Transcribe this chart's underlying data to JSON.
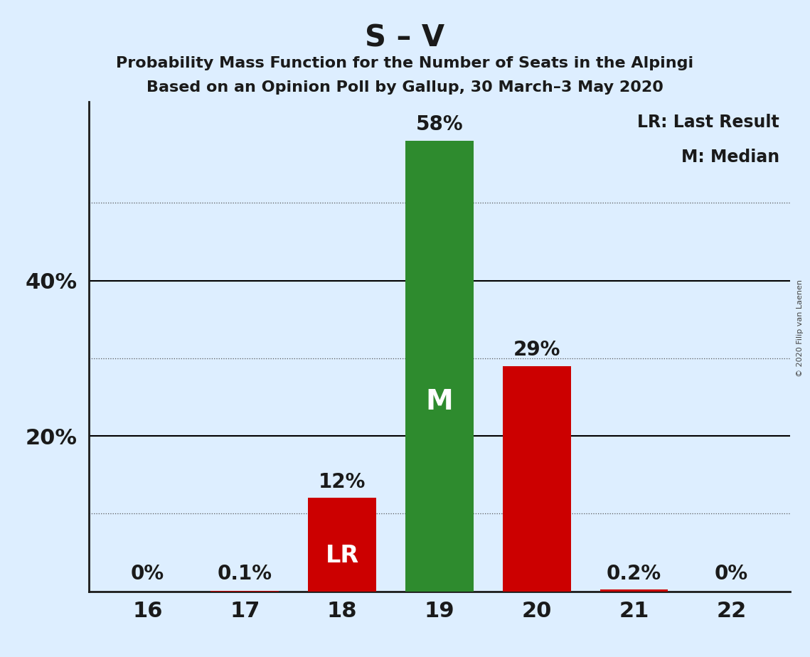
{
  "title_main": "S – V",
  "subtitle1": "Probability Mass Function for the Number of Seats in the Alpingi",
  "subtitle2": "Based on an Opinion Poll by Gallup, 30 March–3 May 2020",
  "copyright": "© 2020 Filip van Laenen",
  "categories": [
    16,
    17,
    18,
    19,
    20,
    21,
    22
  ],
  "values": [
    0.0,
    0.1,
    12.0,
    58.0,
    29.0,
    0.2,
    0.0
  ],
  "bar_colors": [
    "#cc0000",
    "#cc0000",
    "#cc0000",
    "#2e8b2e",
    "#cc0000",
    "#cc0000",
    "#cc0000"
  ],
  "bar_labels": [
    "0%",
    "0.1%",
    "12%",
    "58%",
    "29%",
    "0.2%",
    "0%"
  ],
  "lr_bar_index": 2,
  "median_bar_index": 3,
  "lr_label": "LR",
  "median_label": "M",
  "legend_lr": "LR: Last Result",
  "legend_m": "M: Median",
  "background_color": "#ddeeff",
  "bar_width": 0.7,
  "ylim": [
    0,
    63
  ],
  "yticks_labeled": [
    20,
    40
  ],
  "ytick_labels_map": {
    "20": "20%",
    "40": "40%"
  },
  "solid_gridlines": [
    20,
    40
  ],
  "dotted_gridlines": [
    10,
    30,
    50
  ],
  "title_fontsize": 30,
  "subtitle_fontsize": 16,
  "bar_label_fontsize": 20,
  "inside_label_fontsize_lr": 24,
  "inside_label_fontsize_m": 28,
  "legend_fontsize": 17,
  "ytick_fontsize": 22,
  "xtick_fontsize": 22,
  "text_color": "#1a1a1a"
}
